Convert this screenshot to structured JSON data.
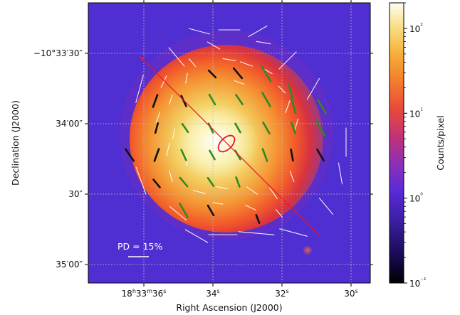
{
  "chart_data": {
    "type": "heatmap",
    "title": "",
    "xlabel": "Right Ascension (J2000)",
    "ylabel": "Declination (J2000)",
    "x_ticks": [
      {
        "label": "18h33m36s",
        "ra_s": 36
      },
      {
        "label": "34s",
        "ra_s": 34
      },
      {
        "label": "32s",
        "ra_s": 32
      },
      {
        "label": "30s",
        "ra_s": 30
      }
    ],
    "y_ticks": [
      {
        "label": "−10°33′30″",
        "dec_arcsec": 0
      },
      {
        "label": "34′00″",
        "dec_arcsec": 30
      },
      {
        "label": "30″",
        "dec_arcsec": 60
      },
      {
        "label": "35′00″",
        "dec_arcsec": 90
      }
    ],
    "colorbar": {
      "label": "Counts/pixel",
      "scale": "log",
      "range": [
        0.1,
        200
      ],
      "ticks": [
        {
          "label": "10⁻¹",
          "value": 0.1
        },
        {
          "label": "10⁰",
          "value": 1
        },
        {
          "label": "10¹",
          "value": 10
        },
        {
          "label": "10²",
          "value": 100
        }
      ]
    },
    "grid": true,
    "annotations": {
      "pd_scale_label": "PD = 15%"
    },
    "colors": {
      "image_low": "#4a2bd0",
      "image_high": "#fffbe8",
      "sig_high_vectors": "#2e8b1e",
      "sig_mid_vectors": "#111111",
      "sig_low_vectors": "#ffffff",
      "ellipse_and_axis": "#e8142a",
      "grid": "#bbbbbb"
    }
  }
}
